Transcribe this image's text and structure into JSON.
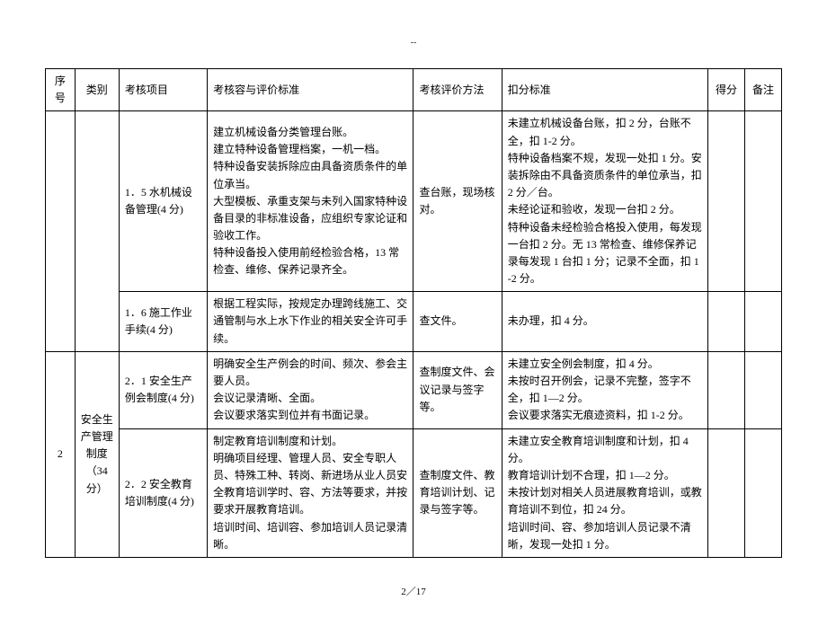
{
  "dash": "--",
  "headers": {
    "seq": "序号",
    "cat": "类别",
    "item": "考核项目",
    "content": "考核容与评价标准",
    "method": "考核评价方法",
    "deduct": "扣分标准",
    "score": "得分",
    "note": "备注"
  },
  "row1": {
    "item": "1．5 水机械设备管理(4 分)",
    "content": "建立机械设备分类管理台账。\n建立特种设备管理档案，一机一档。\n特种设备安装拆除应由具备资质条件的单位承当。\n大型模板、承重支架与未列入国家特种设备目录的非标准设备，应组织专家论证和验收工作。\n特种设备投入使用前经检验合格，13 常检查、维修、保养记录齐全。",
    "method": "查台账，现场核对。",
    "deduct": "未建立机械设备台账，扣 2 分，台账不全，扣 1-2 分。\n特种设备档案不规，发现一处扣 1 分。安装拆除由不具备资质条件的单位承当，扣 2 分／台。\n未经论证和验收，发现一台扣 2 分。\n特种设备未经检验合格投入使用，每发现一台扣 2 分。无 13 常检查、维修保养记录每发现 1 台扣 1 分；记录不全面，扣 1-2 分。"
  },
  "row2": {
    "item": "1．6 施工作业手续(4 分)",
    "content": "根据工程实际，按规定办理跨线施工、交通管制与水上水下作业的相关安全许可手续。",
    "method": "查文件。",
    "deduct": "未办理，扣 4 分。"
  },
  "group2": {
    "seq": "2",
    "cat": "安全生产管理制度（34 分）"
  },
  "row3": {
    "item": "2．1 安全生产例会制度(4 分)",
    "content": "明确安全生产例会的时间、频次、参会主要人员。\n会议记录清晰、全面。\n会议要求落实到位并有书面记录。",
    "method": "查制度文件、会议记录与签字等。",
    "deduct": "未建立安全例会制度，扣 4 分。\n未按时召开例会，记录不完整，签字不全，扣 1—2 分。\n会议要求落实无痕迹资料，扣 1-2 分。"
  },
  "row4": {
    "item": "2．2 安全教育培训制度(4 分)",
    "content": "制定教育培训制度和计划。\n明确项目经理、管理人员、安全专职人员、特殊工种、转岗、新进场从业人员安全教育培训学时、容、方法等要求，并按要求开展教育培训。\n培训时间、培训容、参加培训人员记录清晰。",
    "method": "查制度文件、教育培训计划、记录与签字等。",
    "deduct": "未建立安全教育培训制度和计划，扣 4 分。\n教育培训计划不合理，扣 1—2 分。\n未按计划对相关人员进展教育培训，或教育培训不到位，扣 24 分。\n培训时间、容、参加培训人员记录不清晰，发现一处扣 1 分。"
  },
  "pagenum": "2／17"
}
